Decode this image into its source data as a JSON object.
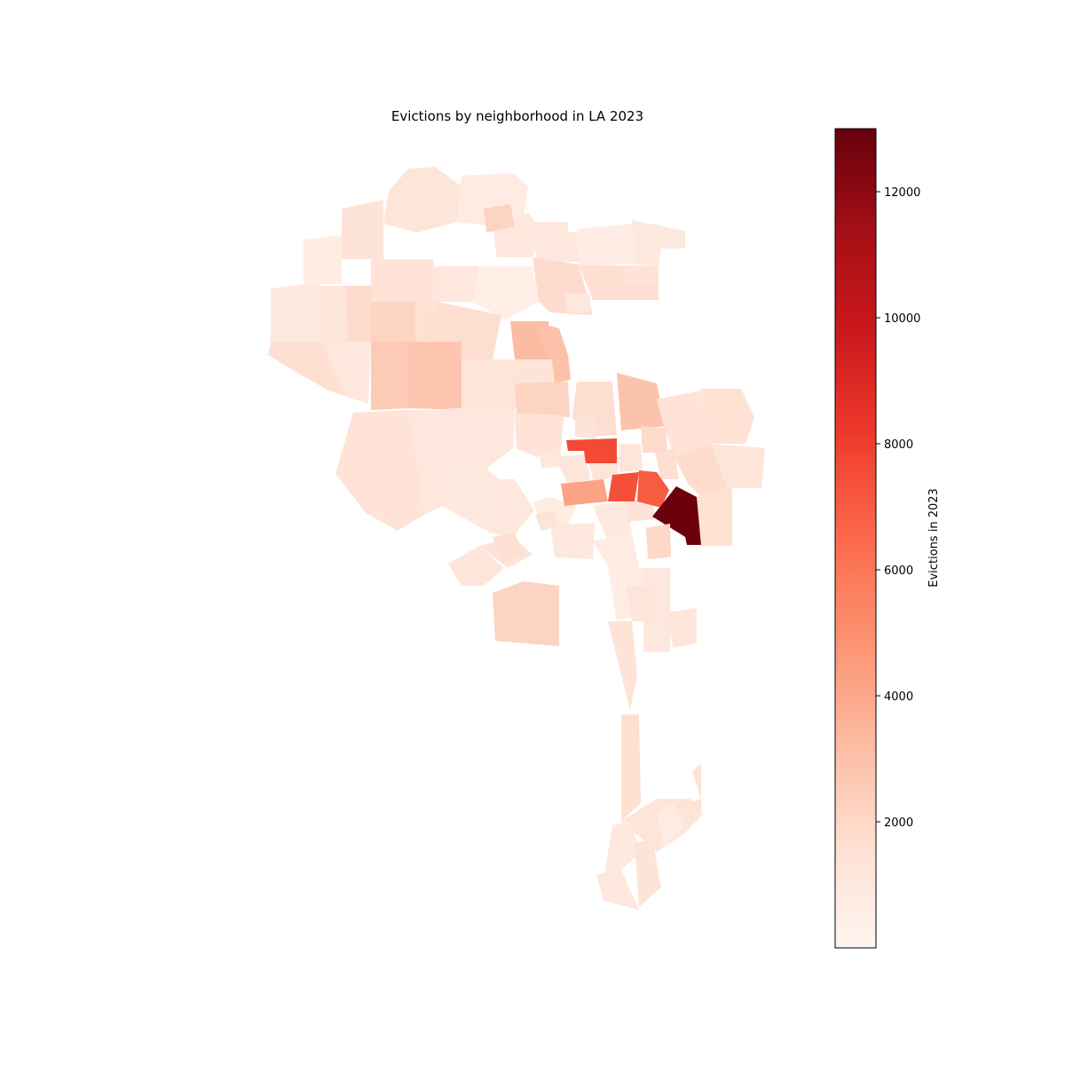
{
  "figure": {
    "title": "Evictions by neighborhood in LA 2023"
  },
  "colorbar": {
    "label": "Evictions in 2023",
    "min": 0,
    "max": 13000,
    "ticks": [
      2000,
      4000,
      6000,
      8000,
      10000,
      12000
    ],
    "tick_labels": [
      "2000",
      "4000",
      "6000",
      "8000",
      "10000",
      "12000"
    ],
    "colormap": "Reds",
    "stops": [
      "#fff5f0",
      "#fee0d2",
      "#fcbba1",
      "#fc9272",
      "#fb6a4a",
      "#ef3b2c",
      "#cb181d",
      "#a50f15",
      "#67000d"
    ]
  },
  "chart_data": {
    "type": "choropleth",
    "title": "Evictions by neighborhood in LA 2023",
    "value_label": "Evictions in 2023",
    "regions": [
      {
        "values": [
          1200,
          800,
          1100,
          1000,
          600,
          900,
          1300,
          700,
          1400,
          1000,
          500,
          1800,
          1600,
          900,
          1200,
          1800,
          2200,
          1500,
          1700,
          3200,
          3000,
          1600,
          1000,
          2600,
          2800,
          1200,
          1300,
          2200,
          1700,
          2900,
          1400,
          1500,
          1200,
          1800,
          1400,
          1000,
          1100,
          1400,
          900,
          1100,
          1200,
          1300,
          700,
          1000,
          1200,
          1300,
          900,
          800,
          600,
          1000,
          2200,
          1200,
          1600,
          7600,
          1900,
          1300,
          4200,
          7400,
          7000,
          12900,
          1500,
          2000,
          1400,
          1600,
          1200,
          900,
          1100,
          1300,
          800,
          1500,
          1000,
          2200,
          1700,
          1300,
          1600,
          1400,
          1100,
          1200,
          1300,
          1000,
          1100,
          1200
        ]
      }
    ]
  }
}
